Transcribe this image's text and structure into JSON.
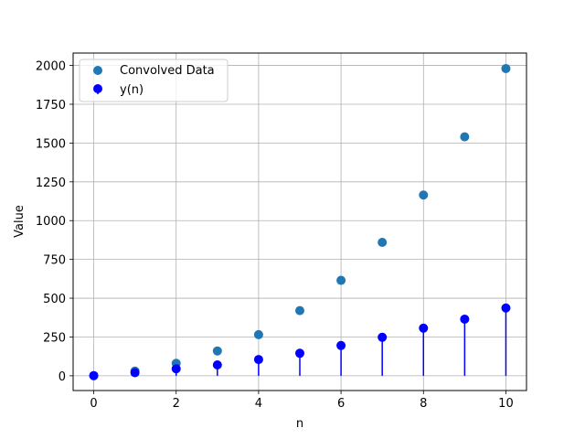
{
  "chart_data": {
    "type": "scatter",
    "xlabel": "n",
    "ylabel": "Value",
    "xlim": [
      -0.5,
      10.5
    ],
    "ylim": [
      -95,
      2080
    ],
    "xticks": [
      0,
      2,
      4,
      6,
      8,
      10
    ],
    "yticks": [
      0,
      250,
      500,
      750,
      1000,
      1250,
      1500,
      1750,
      2000
    ],
    "grid": true,
    "legend_position": "top-left",
    "series": [
      {
        "name": "Convolved Data",
        "kind": "scatter",
        "color": "#1f77b4",
        "x": [
          0,
          1,
          2,
          3,
          4,
          5,
          6,
          7,
          8,
          9,
          10
        ],
        "y": [
          1,
          30,
          80,
          160,
          265,
          420,
          615,
          860,
          1165,
          1540,
          1980
        ]
      },
      {
        "name": "y(n)",
        "kind": "stem",
        "color": "#0000ff",
        "x": [
          0,
          1,
          2,
          3,
          4,
          5,
          6,
          7,
          8,
          9,
          10
        ],
        "y": [
          1,
          20,
          45,
          70,
          105,
          145,
          195,
          248,
          307,
          365,
          437
        ]
      }
    ]
  }
}
